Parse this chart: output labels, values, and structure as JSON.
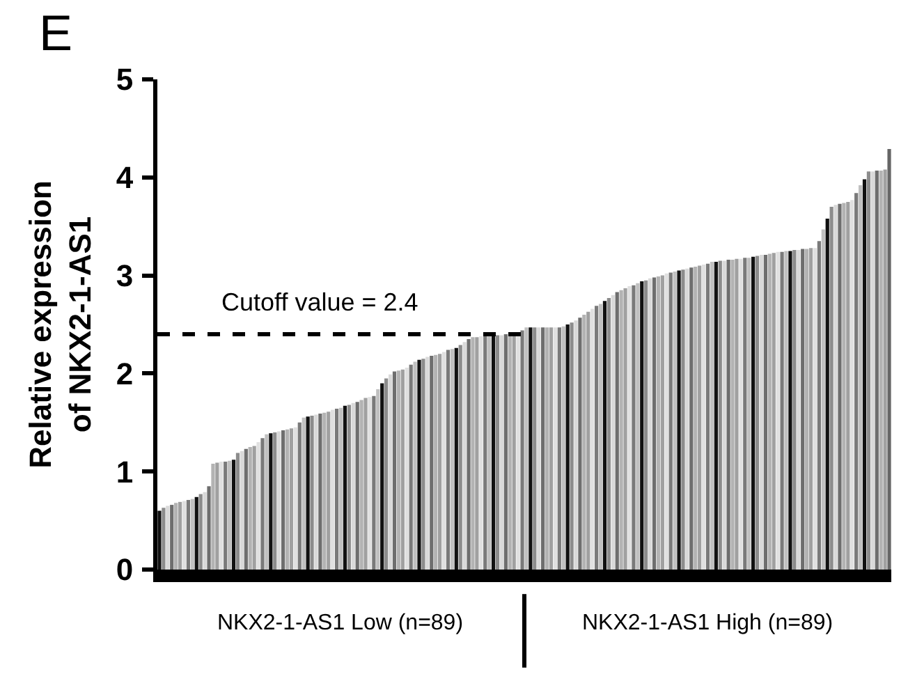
{
  "chart_data": {
    "type": "bar",
    "ylabel": "Relative expression\nof NKX2-1-AS1",
    "annotations": [
      "E",
      "NKX2-1-AS1 Low (n=89)",
      "NKX2-1-AS1 High (n=89)"
    ],
    "categories": [
      null,
      null,
      null,
      null,
      null,
      null,
      null,
      null,
      null,
      null,
      null,
      null,
      null,
      null,
      null,
      null,
      null,
      null,
      null,
      null,
      null,
      null,
      null,
      null,
      null,
      null,
      null,
      null,
      null,
      null,
      null,
      null,
      null,
      null,
      null,
      null,
      null,
      null,
      null,
      null,
      null,
      null,
      null,
      null,
      null,
      null,
      null,
      null,
      null,
      null,
      null,
      null,
      null,
      null,
      null,
      null,
      null,
      null,
      null,
      null,
      null,
      null,
      null,
      null,
      null,
      null,
      null,
      null,
      null,
      null,
      null,
      null,
      null,
      null,
      null,
      null,
      null,
      null,
      null,
      null,
      null,
      null,
      null,
      null,
      null,
      null,
      null,
      null,
      null,
      null,
      null,
      null,
      null,
      null,
      null,
      null,
      null,
      null,
      null,
      null,
      null,
      null,
      null,
      null,
      null,
      null,
      null,
      null,
      null,
      null,
      null,
      null,
      null,
      null,
      null,
      null,
      null,
      null,
      null,
      null,
      null,
      null,
      null,
      null,
      null,
      null,
      null,
      null,
      null,
      null,
      null,
      null,
      null,
      null,
      null,
      null,
      null,
      null,
      null,
      null,
      null,
      null,
      null,
      null,
      null,
      null,
      null,
      null,
      null,
      null,
      null,
      null,
      null,
      null,
      null,
      null,
      null,
      null,
      null,
      null,
      null,
      null,
      null,
      null,
      null,
      null,
      null,
      null,
      null,
      null,
      null,
      null,
      null,
      null,
      null,
      null,
      null,
      null
    ],
    "values": [
      0.6,
      0.63,
      0.65,
      0.66,
      0.68,
      0.69,
      0.7,
      0.71,
      0.72,
      0.74,
      0.77,
      0.79,
      0.85,
      1.08,
      1.09,
      1.1,
      1.1,
      1.11,
      1.12,
      1.19,
      1.21,
      1.23,
      1.25,
      1.26,
      1.3,
      1.34,
      1.38,
      1.39,
      1.4,
      1.41,
      1.42,
      1.43,
      1.44,
      1.45,
      1.5,
      1.55,
      1.56,
      1.57,
      1.58,
      1.59,
      1.6,
      1.61,
      1.63,
      1.64,
      1.65,
      1.67,
      1.68,
      1.7,
      1.71,
      1.73,
      1.75,
      1.76,
      1.77,
      1.84,
      1.9,
      1.95,
      1.99,
      2.02,
      2.03,
      2.04,
      2.06,
      2.09,
      2.12,
      2.14,
      2.15,
      2.17,
      2.18,
      2.19,
      2.2,
      2.22,
      2.24,
      2.25,
      2.26,
      2.29,
      2.32,
      2.35,
      2.37,
      2.37,
      2.38,
      2.38,
      2.38,
      2.39,
      2.39,
      2.39,
      2.4,
      2.4,
      2.4,
      2.42,
      2.44,
      2.47,
      2.47,
      2.47,
      2.47,
      2.47,
      2.47,
      2.47,
      2.47,
      2.47,
      2.48,
      2.5,
      2.52,
      2.54,
      2.57,
      2.6,
      2.63,
      2.66,
      2.69,
      2.71,
      2.74,
      2.77,
      2.8,
      2.83,
      2.85,
      2.87,
      2.89,
      2.9,
      2.92,
      2.94,
      2.95,
      2.97,
      2.98,
      2.99,
      3.0,
      3.02,
      3.03,
      3.04,
      3.05,
      3.06,
      3.07,
      3.08,
      3.09,
      3.1,
      3.11,
      3.12,
      3.14,
      3.14,
      3.15,
      3.15,
      3.16,
      3.16,
      3.17,
      3.17,
      3.18,
      3.18,
      3.19,
      3.2,
      3.21,
      3.21,
      3.22,
      3.23,
      3.24,
      3.24,
      3.25,
      3.25,
      3.26,
      3.26,
      3.27,
      3.27,
      3.28,
      3.28,
      3.35,
      3.47,
      3.58,
      3.7,
      3.72,
      3.73,
      3.74,
      3.75,
      3.77,
      3.84,
      3.92,
      3.98,
      4.06,
      4.06,
      4.07,
      4.07,
      4.08,
      4.29
    ],
    "colors": [
      "#111111",
      "#8c8c8c",
      "#d9d9d9",
      "#6e6e6e",
      "#b3b3b3",
      "#a0a0a0",
      "#e0e0e0",
      "#7a7a7a",
      "#c0c0c0",
      "#111111",
      "#8c8c8c",
      "#d9d9d9",
      "#6e6e6e",
      "#b3b3b3",
      "#a0a0a0",
      "#e0e0e0",
      "#7a7a7a",
      "#c0c0c0",
      "#111111",
      "#8c8c8c",
      "#d9d9d9",
      "#6e6e6e",
      "#b3b3b3",
      "#a0a0a0",
      "#e0e0e0",
      "#7a7a7a",
      "#c0c0c0",
      "#111111",
      "#8c8c8c",
      "#d9d9d9",
      "#6e6e6e",
      "#b3b3b3",
      "#a0a0a0",
      "#e0e0e0",
      "#7a7a7a",
      "#c0c0c0",
      "#111111",
      "#8c8c8c",
      "#d9d9d9",
      "#6e6e6e",
      "#b3b3b3",
      "#a0a0a0",
      "#e0e0e0",
      "#7a7a7a",
      "#c0c0c0",
      "#111111",
      "#8c8c8c",
      "#d9d9d9",
      "#6e6e6e",
      "#b3b3b3",
      "#a0a0a0",
      "#e0e0e0",
      "#7a7a7a",
      "#c0c0c0",
      "#111111",
      "#8c8c8c",
      "#d9d9d9",
      "#6e6e6e",
      "#b3b3b3",
      "#a0a0a0",
      "#e0e0e0",
      "#7a7a7a",
      "#c0c0c0",
      "#111111",
      "#8c8c8c",
      "#d9d9d9",
      "#6e6e6e",
      "#b3b3b3",
      "#a0a0a0",
      "#e0e0e0",
      "#7a7a7a",
      "#c0c0c0",
      "#111111",
      "#8c8c8c",
      "#d9d9d9",
      "#6e6e6e",
      "#b3b3b3",
      "#a0a0a0",
      "#e0e0e0",
      "#7a7a7a",
      "#c0c0c0",
      "#111111",
      "#8c8c8c",
      "#d9d9d9",
      "#6e6e6e",
      "#b3b3b3",
      "#a0a0a0",
      "#e0e0e0",
      "#7a7a7a",
      "#c0c0c0",
      "#111111",
      "#8c8c8c",
      "#d9d9d9",
      "#6e6e6e",
      "#b3b3b3",
      "#a0a0a0",
      "#e0e0e0",
      "#7a7a7a",
      "#c0c0c0",
      "#111111",
      "#8c8c8c",
      "#d9d9d9",
      "#6e6e6e",
      "#b3b3b3",
      "#a0a0a0",
      "#e0e0e0",
      "#7a7a7a",
      "#c0c0c0",
      "#111111",
      "#8c8c8c",
      "#d9d9d9",
      "#6e6e6e",
      "#b3b3b3",
      "#a0a0a0",
      "#e0e0e0",
      "#7a7a7a",
      "#c0c0c0",
      "#111111",
      "#8c8c8c",
      "#d9d9d9",
      "#6e6e6e",
      "#b3b3b3",
      "#a0a0a0",
      "#e0e0e0",
      "#7a7a7a",
      "#c0c0c0",
      "#111111",
      "#8c8c8c",
      "#d9d9d9",
      "#6e6e6e",
      "#b3b3b3",
      "#a0a0a0",
      "#e0e0e0",
      "#7a7a7a",
      "#c0c0c0",
      "#111111",
      "#8c8c8c",
      "#d9d9d9",
      "#6e6e6e",
      "#b3b3b3",
      "#a0a0a0",
      "#e0e0e0",
      "#7a7a7a",
      "#c0c0c0",
      "#111111",
      "#8c8c8c",
      "#d9d9d9",
      "#6e6e6e",
      "#b3b3b3",
      "#a0a0a0",
      "#e0e0e0",
      "#7a7a7a",
      "#c0c0c0",
      "#111111",
      "#8c8c8c",
      "#d9d9d9",
      "#6e6e6e",
      "#b3b3b3",
      "#a0a0a0",
      "#e0e0e0",
      "#7a7a7a",
      "#c0c0c0",
      "#111111",
      "#8c8c8c",
      "#d9d9d9",
      "#6e6e6e",
      "#b3b3b3",
      "#a0a0a0",
      "#e0e0e0",
      "#7a7a7a",
      "#c0c0c0",
      "#111111",
      "#8c8c8c",
      "#d9d9d9",
      "#6e6e6e",
      "#b3b3b3",
      "#a0a0a0",
      "#666666"
    ],
    "ylim": [
      0,
      5
    ],
    "yticks": [
      0,
      1,
      2,
      3,
      4,
      5
    ],
    "ref_lines": [
      {
        "axis": "y",
        "value": 2.4,
        "label": "Cutoff value = 2.4",
        "color": "#000000",
        "line_style": "dashed"
      }
    ]
  }
}
